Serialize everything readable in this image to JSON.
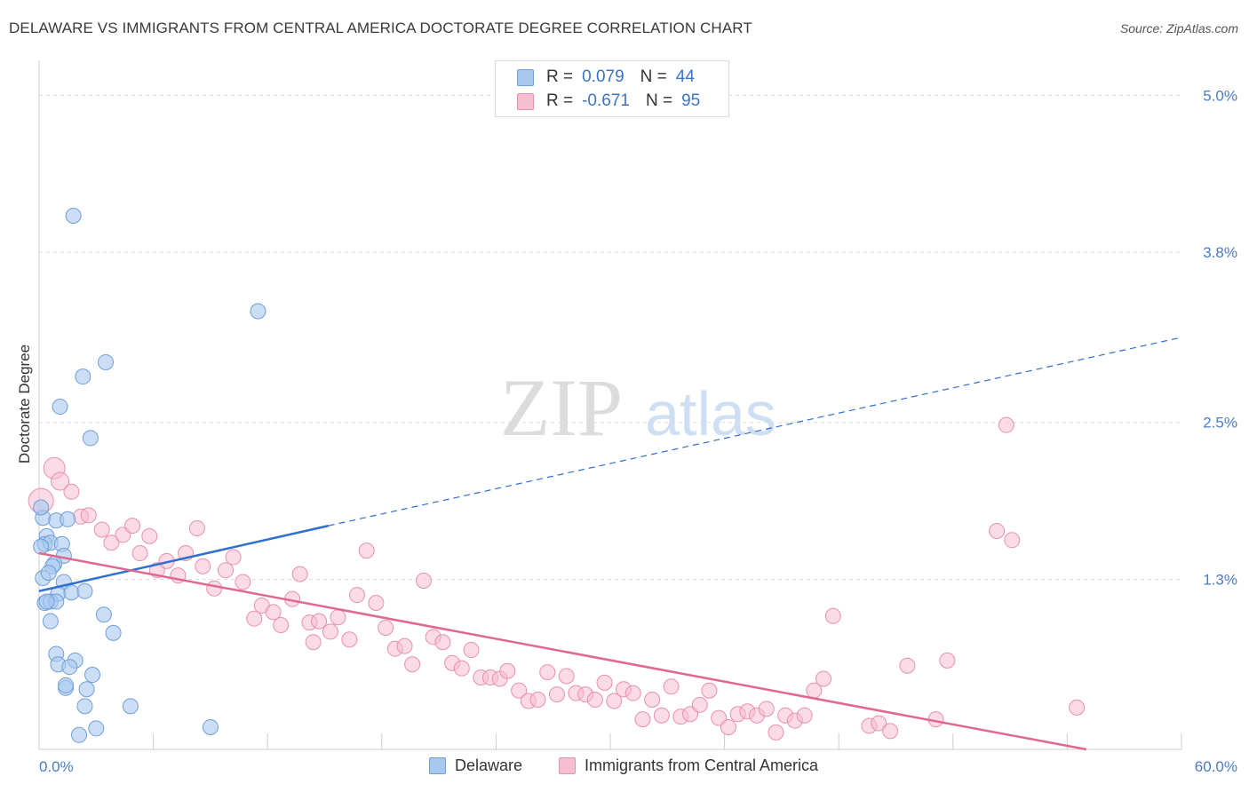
{
  "header": {
    "title": "DELAWARE VS IMMIGRANTS FROM CENTRAL AMERICA DOCTORATE DEGREE CORRELATION CHART",
    "source": "Source: ZipAtlas.com"
  },
  "watermark": {
    "zip": "ZIP",
    "atlas": "atlas"
  },
  "legend": {
    "rows": [
      {
        "r_label": "R =",
        "r_value": "0.079",
        "n_label": "N =",
        "n_value": "44",
        "color": "#a9c8f0",
        "border": "#6f9fd8"
      },
      {
        "r_label": "R =",
        "r_value": "-0.671",
        "n_label": "N =",
        "n_value": "95",
        "color": "#f7bdd0",
        "border": "#e890ad"
      }
    ]
  },
  "bottom_legend": {
    "delaware": "Delaware",
    "immigrants": "Immigrants from Central America"
  },
  "colors": {
    "blue_fill": "#a9c8f0",
    "blue_stroke": "#6f9fd8",
    "blue_line": "#2f6fcf",
    "pink_fill": "#f7bdd0",
    "pink_stroke": "#e890ad",
    "pink_line": "#e0688f",
    "grid": "#dddddd",
    "tick_text": "#4a7cc4"
  },
  "chart_data": {
    "type": "scatter",
    "title": "DELAWARE VS IMMIGRANTS FROM CENTRAL AMERICA DOCTORATE DEGREE CORRELATION CHART",
    "xlabel": "",
    "ylabel": "Doctorate Degree",
    "xlim": [
      0,
      60
    ],
    "ylim": [
      0,
      5.2
    ],
    "x_tick_labels": [
      "0.0%",
      "60.0%"
    ],
    "y_ticks": [
      {
        "value": 1.3,
        "label": "1.3%"
      },
      {
        "value": 2.5,
        "label": "2.5%"
      },
      {
        "value": 3.8,
        "label": "3.8%"
      },
      {
        "value": 5.0,
        "label": "5.0%"
      }
    ],
    "grid": true,
    "legend_position": "top-center",
    "series": [
      {
        "name": "Delaware",
        "R": 0.079,
        "N": 44,
        "trend": {
          "x0": 0,
          "y0": 1.21,
          "x1": 15.2,
          "y1": 1.71,
          "dashed_to_x": 60,
          "dashed_to_y": 3.15
        },
        "points": [
          [
            1.8,
            4.08
          ],
          [
            11.5,
            3.35
          ],
          [
            3.5,
            2.96
          ],
          [
            2.3,
            2.85
          ],
          [
            1.1,
            2.62
          ],
          [
            2.7,
            2.38
          ],
          [
            0.2,
            1.77
          ],
          [
            0.9,
            1.75
          ],
          [
            1.5,
            1.76
          ],
          [
            0.4,
            1.63
          ],
          [
            0.3,
            1.57
          ],
          [
            0.6,
            1.58
          ],
          [
            1.2,
            1.57
          ],
          [
            1.3,
            1.48
          ],
          [
            0.8,
            1.42
          ],
          [
            0.7,
            1.4
          ],
          [
            1.3,
            1.28
          ],
          [
            0.2,
            1.31
          ],
          [
            1.0,
            1.19
          ],
          [
            1.7,
            1.2
          ],
          [
            2.4,
            1.21
          ],
          [
            0.3,
            1.12
          ],
          [
            0.6,
            1.13
          ],
          [
            0.9,
            1.13
          ],
          [
            3.4,
            1.03
          ],
          [
            0.6,
            0.98
          ],
          [
            3.9,
            0.89
          ],
          [
            0.9,
            0.73
          ],
          [
            1.9,
            0.68
          ],
          [
            1.0,
            0.65
          ],
          [
            1.6,
            0.63
          ],
          [
            2.8,
            0.57
          ],
          [
            1.4,
            0.47
          ],
          [
            1.4,
            0.49
          ],
          [
            2.5,
            0.46
          ],
          [
            2.4,
            0.33
          ],
          [
            4.8,
            0.33
          ],
          [
            3.0,
            0.16
          ],
          [
            2.1,
            0.11
          ],
          [
            9.0,
            0.17
          ],
          [
            0.1,
            1.85
          ],
          [
            0.5,
            1.35
          ],
          [
            0.1,
            1.55
          ],
          [
            0.4,
            1.13
          ]
        ]
      },
      {
        "name": "Immigrants from Central America",
        "R": -0.671,
        "N": 95,
        "trend": {
          "x0": 0,
          "y0": 1.5,
          "x1": 55,
          "y1": 0.0
        },
        "points": [
          [
            0.1,
            1.9
          ],
          [
            0.8,
            2.15
          ],
          [
            1.1,
            2.05
          ],
          [
            1.7,
            1.97
          ],
          [
            2.2,
            1.78
          ],
          [
            2.6,
            1.79
          ],
          [
            3.3,
            1.68
          ],
          [
            3.8,
            1.58
          ],
          [
            4.4,
            1.64
          ],
          [
            4.9,
            1.71
          ],
          [
            5.3,
            1.5
          ],
          [
            5.8,
            1.63
          ],
          [
            6.2,
            1.37
          ],
          [
            6.7,
            1.44
          ],
          [
            7.3,
            1.33
          ],
          [
            7.7,
            1.5
          ],
          [
            8.3,
            1.69
          ],
          [
            8.6,
            1.4
          ],
          [
            9.2,
            1.23
          ],
          [
            9.8,
            1.37
          ],
          [
            10.2,
            1.47
          ],
          [
            10.7,
            1.28
          ],
          [
            11.3,
            1.0
          ],
          [
            11.7,
            1.1
          ],
          [
            12.3,
            1.05
          ],
          [
            12.7,
            0.95
          ],
          [
            13.3,
            1.15
          ],
          [
            13.7,
            1.34
          ],
          [
            14.2,
            0.97
          ],
          [
            14.7,
            0.98
          ],
          [
            14.4,
            0.82
          ],
          [
            15.3,
            0.9
          ],
          [
            15.7,
            1.01
          ],
          [
            16.3,
            0.84
          ],
          [
            16.7,
            1.18
          ],
          [
            17.2,
            1.52
          ],
          [
            17.7,
            1.12
          ],
          [
            18.2,
            0.93
          ],
          [
            18.7,
            0.77
          ],
          [
            19.2,
            0.79
          ],
          [
            19.6,
            0.65
          ],
          [
            20.2,
            1.29
          ],
          [
            20.7,
            0.86
          ],
          [
            21.2,
            0.82
          ],
          [
            21.7,
            0.66
          ],
          [
            22.2,
            0.62
          ],
          [
            22.7,
            0.76
          ],
          [
            23.2,
            0.55
          ],
          [
            23.7,
            0.55
          ],
          [
            24.2,
            0.54
          ],
          [
            24.6,
            0.6
          ],
          [
            25.2,
            0.45
          ],
          [
            25.7,
            0.37
          ],
          [
            26.2,
            0.38
          ],
          [
            26.7,
            0.59
          ],
          [
            27.2,
            0.42
          ],
          [
            27.7,
            0.56
          ],
          [
            28.2,
            0.43
          ],
          [
            28.7,
            0.42
          ],
          [
            29.2,
            0.38
          ],
          [
            29.7,
            0.51
          ],
          [
            30.2,
            0.37
          ],
          [
            30.7,
            0.46
          ],
          [
            31.2,
            0.43
          ],
          [
            31.7,
            0.23
          ],
          [
            32.2,
            0.38
          ],
          [
            32.7,
            0.26
          ],
          [
            33.2,
            0.48
          ],
          [
            33.7,
            0.25
          ],
          [
            34.2,
            0.27
          ],
          [
            34.7,
            0.34
          ],
          [
            35.2,
            0.45
          ],
          [
            35.7,
            0.24
          ],
          [
            36.2,
            0.17
          ],
          [
            36.7,
            0.27
          ],
          [
            37.2,
            0.29
          ],
          [
            37.7,
            0.26
          ],
          [
            38.2,
            0.31
          ],
          [
            38.7,
            0.13
          ],
          [
            39.2,
            0.26
          ],
          [
            39.7,
            0.22
          ],
          [
            40.2,
            0.26
          ],
          [
            40.7,
            0.45
          ],
          [
            41.2,
            0.54
          ],
          [
            41.7,
            1.02
          ],
          [
            43.6,
            0.18
          ],
          [
            44.1,
            0.2
          ],
          [
            44.7,
            0.14
          ],
          [
            45.6,
            0.64
          ],
          [
            47.1,
            0.23
          ],
          [
            47.7,
            0.68
          ],
          [
            50.3,
            1.67
          ],
          [
            51.1,
            1.6
          ],
          [
            50.8,
            2.48
          ],
          [
            54.5,
            0.32
          ]
        ]
      }
    ]
  }
}
